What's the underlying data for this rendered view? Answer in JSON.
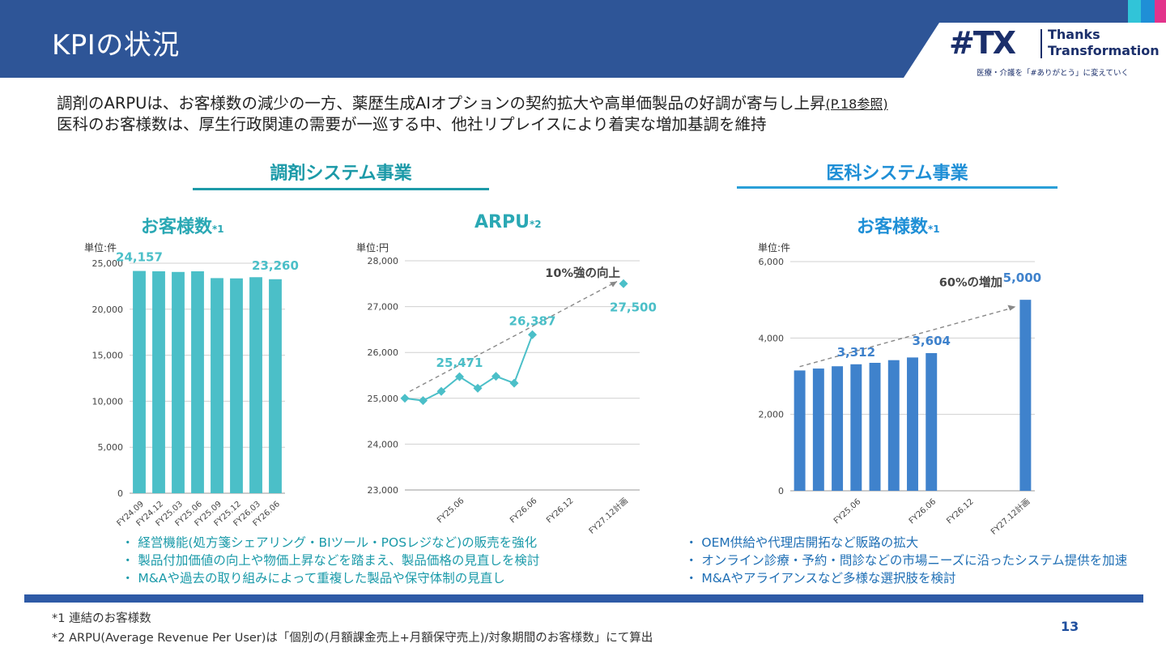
{
  "header": {
    "title": "KPIの状況",
    "colors": {
      "band": "#2e5597",
      "accent_cyan": "#31c4d8",
      "accent_blue": "#1f8fd6",
      "accent_pink": "#e2338b"
    }
  },
  "logo": {
    "mark": "#TX",
    "word_1": "Thanks",
    "word_2": "Transformation",
    "tagline": "医療・介護を「#ありがとう」に変えていく"
  },
  "summary": {
    "line_1": "調剤のARPUは、お客様数の減少の一方、薬歴生成AIオプションの契約拡大や高単価製品の好調が寄与し上昇",
    "line_1_ref": "(P.18参照)",
    "line_2": "医科のお客様数は、厚生行政関連の需要が一巡する中、他社リプレイスにより着実な増加基調を維持"
  },
  "sections": {
    "left": "調剤システム事業",
    "right": "医科システム事業"
  },
  "chart_data": [
    {
      "type": "bar",
      "title": "お客様数",
      "note": "*1",
      "unit_label": "単位:件",
      "categories": [
        "FY24.09",
        "FY24.12",
        "FY25.03",
        "FY25.06",
        "FY25.09",
        "FY25.12",
        "FY26.03",
        "FY26.06"
      ],
      "values": [
        24157,
        24120,
        24050,
        24120,
        23380,
        23350,
        23480,
        23260
      ],
      "ylim": [
        0,
        25000
      ],
      "yticks": [
        "0",
        "5,000",
        "10,000",
        "15,000",
        "20,000",
        "25,000"
      ],
      "data_labels": [
        {
          "index": 0,
          "text": "24,157"
        },
        {
          "index": 7,
          "text": "23,260"
        }
      ],
      "color": "#4bbfc8",
      "grid": true
    },
    {
      "type": "line",
      "title": "ARPU",
      "note": "*2",
      "unit_label": "単位:円",
      "x": [
        "FY24.09",
        "FY24.12",
        "FY25.03",
        "FY25.06",
        "FY25.09",
        "FY25.12",
        "FY26.03",
        "FY26.06",
        "FY26.09",
        "FY26.12",
        "FY27.03",
        "FY27.06",
        "FY27.12計画"
      ],
      "xtick_labels": [
        {
          "index": 3,
          "text": "FY25.06"
        },
        {
          "index": 7,
          "text": "FY26.06"
        },
        {
          "index": 9,
          "text": "FY26.12"
        },
        {
          "index": 12,
          "text": "FY27.12計画"
        }
      ],
      "values": [
        25000,
        24950,
        25150,
        25471,
        25220,
        25480,
        25330,
        26387,
        null,
        null,
        null,
        null,
        27500
      ],
      "ylim": [
        23000,
        28000
      ],
      "yticks": [
        "23,000",
        "24,000",
        "25,000",
        "26,000",
        "27,000",
        "28,000"
      ],
      "data_labels": [
        {
          "index": 3,
          "text": "25,471"
        },
        {
          "index": 7,
          "text": "26,387"
        },
        {
          "index": 12,
          "text": "27,500"
        }
      ],
      "annotation": "10%強の向上",
      "color": "#4bbfc8",
      "grid": true
    },
    {
      "type": "bar",
      "title": "お客様数",
      "note": "*1",
      "unit_label": "単位:件",
      "categories": [
        "FY24.09",
        "FY24.12",
        "FY25.03",
        "FY25.06",
        "FY25.09",
        "FY25.12",
        "FY26.03",
        "FY26.06",
        "FY26.09",
        "FY26.12",
        "FY27.03",
        "FY27.06",
        "FY27.12計画"
      ],
      "xtick_labels": [
        {
          "index": 3,
          "text": "FY25.06"
        },
        {
          "index": 7,
          "text": "FY26.06"
        },
        {
          "index": 9,
          "text": "FY26.12"
        },
        {
          "index": 12,
          "text": "FY27.12計画"
        }
      ],
      "values": [
        3150,
        3200,
        3260,
        3312,
        3350,
        3420,
        3490,
        3604,
        null,
        null,
        null,
        null,
        5000
      ],
      "ylim": [
        0,
        6000
      ],
      "yticks": [
        "0",
        "2,000",
        "4,000",
        "6,000"
      ],
      "data_labels": [
        {
          "index": 3,
          "text": "3,312"
        },
        {
          "index": 7,
          "text": "3,604"
        },
        {
          "index": 12,
          "text": "5,000"
        }
      ],
      "annotation": "60%の増加",
      "color": "#3f82cc",
      "grid": true
    }
  ],
  "bullets_left": [
    "・ 経営機能(処方箋シェアリング・BIツール・POSレジなど)の販売を強化",
    "・ 製品付加価値の向上や物価上昇などを踏まえ、製品価格の見直しを検討",
    "・ M&Aや過去の取り組みによって重複した製品や保守体制の見直し"
  ],
  "bullets_right": [
    "・ OEM供給や代理店開拓など販路の拡大",
    "・ オンライン診療・予約・問診などの市場ニーズに沿ったシステム提供を加速",
    "・ M&Aやアライアンスなど多様な選択肢を検討"
  ],
  "footnotes": [
    "*1 連結のお客様数",
    "*2 ARPU(Average Revenue Per User)は「個別の(月額課金売上+月額保守売上)/対象期間のお客様数」にて算出"
  ],
  "page_number": "13"
}
